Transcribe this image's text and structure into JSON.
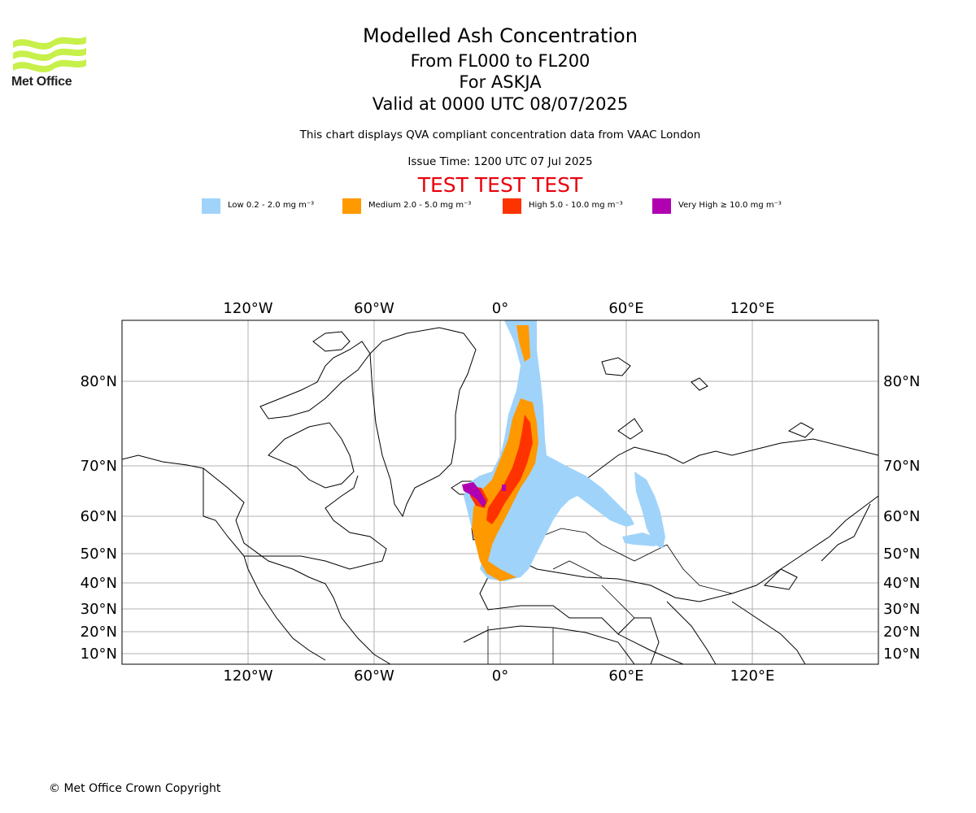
{
  "header": {
    "logo_text": "Met Office",
    "title": "Modelled Ash Concentration",
    "line2": "From FL000 to FL200",
    "line3": "For ASKJA",
    "line4": "Valid at 0000 UTC 08/07/2025",
    "subtitle": "This chart displays QVA compliant concentration data from VAAC London",
    "issue_time": "Issue Time: 1200 UTC 07 Jul 2025",
    "test_banner": "TEST TEST TEST"
  },
  "legend": [
    {
      "label": "Low 0.2 - 2.0 mg m⁻³",
      "color": "#a0d3fa"
    },
    {
      "label": "Medium 2.0 - 5.0 mg m⁻³",
      "color": "#ff9900"
    },
    {
      "label": "High 5.0 - 10.0 mg m⁻³",
      "color": "#ff3300"
    },
    {
      "label": "Very High ≥ 10.0 mg m⁻³",
      "color": "#b000b0"
    }
  ],
  "map": {
    "lon_ticks": [
      "120°W",
      "60°W",
      "0°",
      "60°E",
      "120°E"
    ],
    "lat_ticks": [
      "80°N",
      "70°N",
      "60°N",
      "50°N",
      "40°N",
      "30°N",
      "20°N",
      "10°N"
    ],
    "grid": true,
    "projection": "polar stereographic style"
  },
  "footer": {
    "copyright": "© Met Office Crown Copyright"
  }
}
